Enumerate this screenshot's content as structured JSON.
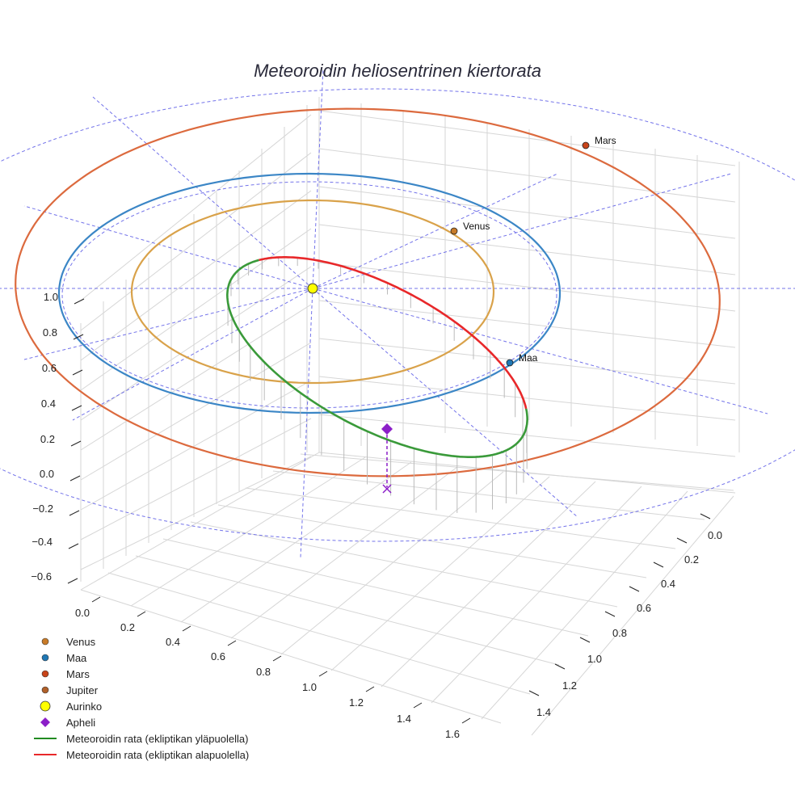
{
  "chart_data": {
    "type": "scatter",
    "title": "Meteoroidin heliosentrinen kiertorata",
    "projection": "3d",
    "grid": true,
    "legend_placement": "bottom-left",
    "axes": {
      "x": {
        "ticks": [
          "0.0",
          "0.2",
          "0.4",
          "0.6",
          "0.8",
          "1.0",
          "1.2",
          "1.4",
          "1.6"
        ]
      },
      "y": {
        "ticks": [
          "0.0",
          "0.2",
          "0.4",
          "0.6",
          "0.8",
          "1.0",
          "1.2",
          "1.4"
        ]
      },
      "z": {
        "ticks": [
          "−0.6",
          "−0.4",
          "−0.2",
          "0.0",
          "0.2",
          "0.4",
          "0.6",
          "0.8",
          "1.0"
        ]
      }
    },
    "bodies": [
      {
        "name": "Venus",
        "label": "Venus",
        "color": "#c87b28"
      },
      {
        "name": "Maa",
        "label": "Maa",
        "color": "#1f77b4"
      },
      {
        "name": "Mars",
        "label": "Mars",
        "color": "#c8441a"
      }
    ],
    "orbits": [
      {
        "body": "Venus",
        "color": "#d9a24a"
      },
      {
        "body": "Maa",
        "color": "#3b86c6"
      },
      {
        "body": "Mars",
        "color": "#dc6a3e"
      }
    ],
    "meteoroid": {
      "above_color": "#3a9a3a",
      "below_color": "#e8282a",
      "aphelion_color": "#8b1fc8"
    },
    "legend": [
      {
        "label": "Venus",
        "symbol": "dot",
        "color": "#c87b28"
      },
      {
        "label": "Maa",
        "symbol": "dot",
        "color": "#1f77b4"
      },
      {
        "label": "Mars",
        "symbol": "dot",
        "color": "#c8441a"
      },
      {
        "label": "Jupiter",
        "symbol": "dot",
        "color": "#b0602a"
      },
      {
        "label": "Aurinko",
        "symbol": "sun",
        "color": "#ffff00"
      },
      {
        "label": "Apheli",
        "symbol": "diamond",
        "color": "#8b1fc8"
      },
      {
        "label": "Meteoroidin rata (ekliptikan yläpuolella)",
        "symbol": "line",
        "color": "#228b22"
      },
      {
        "label": "Meteoroidin rata (ekliptikan alapuolella)",
        "symbol": "line",
        "color": "#e8282a"
      }
    ]
  }
}
